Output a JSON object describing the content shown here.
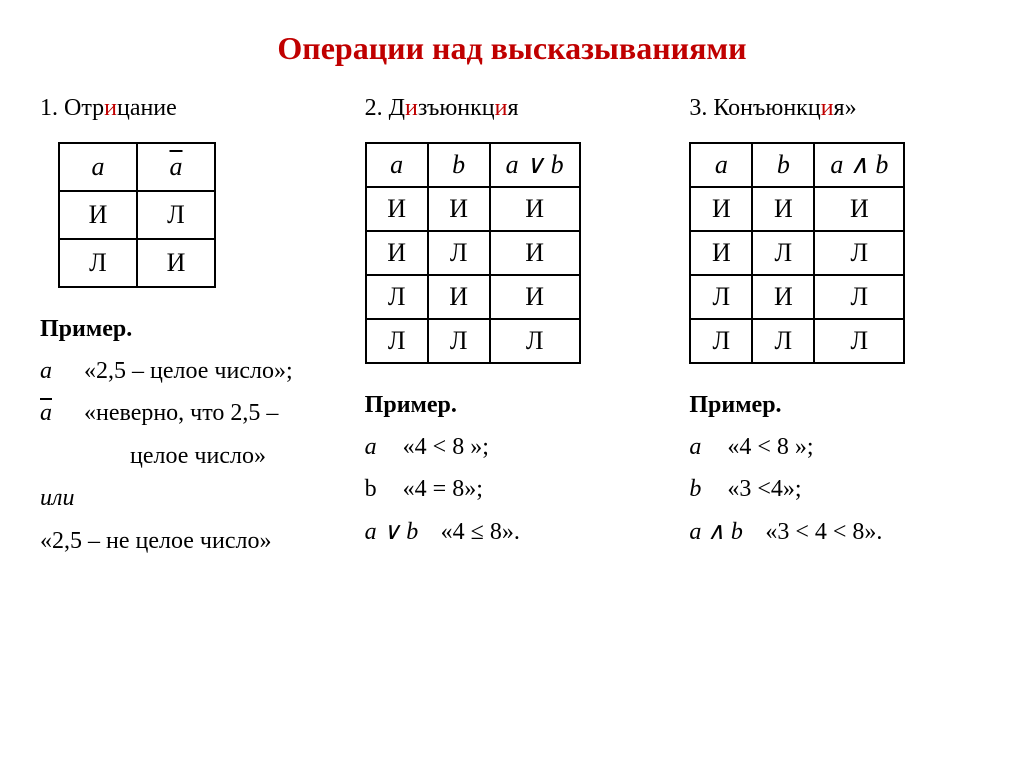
{
  "title": "Операции над высказываниями",
  "subtitles": {
    "s1_a": "1. Отр",
    "s1_b": "и",
    "s1_c": "цание",
    "s2_a": "2. Д",
    "s2_b": "и",
    "s2_c": "зъюнкц",
    "s2_d": "и",
    "s2_e": "я",
    "s3_a": "3. Конъюнкц",
    "s3_b": "и",
    "s3_c": "я»"
  },
  "table1": {
    "headers": [
      "a",
      "a"
    ],
    "rows": [
      [
        "И",
        "Л"
      ],
      [
        "Л",
        "И"
      ]
    ]
  },
  "table2": {
    "headers": [
      "a",
      "b",
      "a ∨ b"
    ],
    "rows": [
      [
        "И",
        "И",
        "И"
      ],
      [
        "И",
        "Л",
        "И"
      ],
      [
        "Л",
        "И",
        "И"
      ],
      [
        "Л",
        "Л",
        "Л"
      ]
    ]
  },
  "table3": {
    "headers": [
      "a",
      "b",
      "a ∧ b"
    ],
    "rows": [
      [
        "И",
        "И",
        "И"
      ],
      [
        "И",
        "Л",
        "Л"
      ],
      [
        "Л",
        "И",
        "Л"
      ],
      [
        "Л",
        "Л",
        "Л"
      ]
    ]
  },
  "example_label": "Пример",
  "ex1": {
    "a_sym": "a",
    "a_txt": "«2,5 – целое число»;",
    "not_a_sym": "a",
    "not_a_txt": "«неверно, что 2,5 –",
    "not_a_txt2": "целое число»",
    "ili": "или",
    "last": "«2,5 – не целое число»"
  },
  "ex2": {
    "a_sym": "a",
    "a_txt": "«4 < 8 »;",
    "b_sym": "b",
    "b_txt": "«4 = 8»;",
    "op_sym": "a ∨ b",
    "op_txt": "«4 ≤ 8»."
  },
  "ex3": {
    "a_sym": "a",
    "a_txt": "«4 < 8 »;",
    "b_sym": "b",
    "b_txt": "«3 <4»;",
    "op_sym": "a ∧ b",
    "op_txt": "«3 < 4 < 8»."
  },
  "colors": {
    "title": "#c00000",
    "accent": "#c00000",
    "text": "#000000",
    "border": "#000000",
    "background": "#ffffff"
  }
}
